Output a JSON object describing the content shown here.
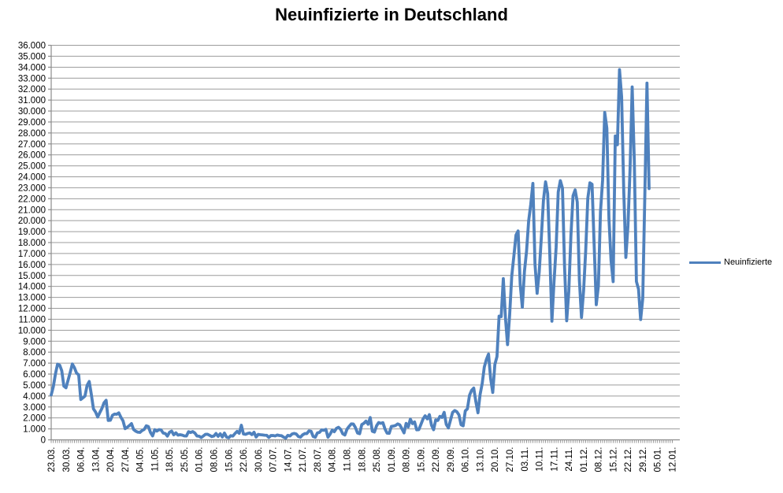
{
  "title": "Neuinfizierte in Deutschland",
  "legend": {
    "label": "Neuinfizierte",
    "position": "right"
  },
  "colors": {
    "line": "#4F81BD",
    "gridline": "#9C9C9C",
    "axis": "#8C8C8C",
    "text": "#000000",
    "background": "#FFFFFF"
  },
  "chart_data": {
    "type": "line",
    "title": "Neuinfizierte in Deutschland",
    "xlabel": "",
    "ylabel": "",
    "grid": "horizontal",
    "legend_position": "right",
    "ylim": [
      0,
      36000
    ],
    "y_tick_step": 1000,
    "y_tick_labels": [
      "0",
      "1.000",
      "2.000",
      "3.000",
      "4.000",
      "5.000",
      "6.000",
      "7.000",
      "8.000",
      "9.000",
      "10.000",
      "11.000",
      "12.000",
      "13.000",
      "14.000",
      "15.000",
      "16.000",
      "17.000",
      "18.000",
      "19.000",
      "20.000",
      "21.000",
      "22.000",
      "23.000",
      "24.000",
      "25.000",
      "26.000",
      "27.000",
      "28.000",
      "29.000",
      "30.000",
      "31.000",
      "32.000",
      "33.000",
      "34.000",
      "35.000",
      "36.000"
    ],
    "x_tick_labels": [
      "23.03.",
      "30.03.",
      "06.04.",
      "13.04.",
      "20.04.",
      "27.04.",
      "04.05.",
      "11.05.",
      "18.05.",
      "25.05.",
      "01.06.",
      "08.06.",
      "15.06.",
      "22.06.",
      "30.06.",
      "07.07.",
      "14.07.",
      "21.07.",
      "28.07.",
      "04.08.",
      "11.08.",
      "18.08.",
      "25.08.",
      "01.09.",
      "08.09.",
      "15.09.",
      "22.09.",
      "29.09.",
      "06.10.",
      "13.10.",
      "20.10.",
      "27.10.",
      "03.11.",
      "10.11.",
      "17.11.",
      "24.11.",
      "01.12.",
      "08.12.",
      "15.12.",
      "22.12.",
      "29.12.",
      "05.01.",
      "12.01."
    ],
    "x_tick_interval_points": 7,
    "x_start": "23.03.2020",
    "x_frequency": "daily",
    "series": [
      {
        "name": "Neuinfizierte",
        "values": [
          4100,
          4850,
          6000,
          6900,
          6820,
          6300,
          4900,
          4750,
          5450,
          6156,
          6922,
          6582,
          6082,
          5936,
          3677,
          3834,
          4003,
          4974,
          5323,
          4133,
          2821,
          2537,
          2082,
          2486,
          2866,
          3380,
          3609,
          1775,
          1785,
          2237,
          2352,
          2337,
          2458,
          2055,
          1737,
          1018,
          1144,
          1304,
          1478,
          945,
          790,
          700,
          680,
          850,
          950,
          1280,
          1210,
          670,
          360,
          930,
          800,
          930,
          910,
          620,
          580,
          340,
          690,
          800,
          460,
          640,
          430,
          470,
          430,
          360,
          350,
          740,
          670,
          750,
          620,
          350,
          333,
          213,
          350,
          500,
          510,
          410,
          300,
          350,
          580,
          320,
          555,
          260,
          620,
          250,
          190,
          380,
          345,
          580,
          770,
          600,
          1331,
          537,
          503,
          587,
          630,
          477,
          687,
          256,
          498,
          466,
          446,
          422,
          412,
          219,
          390,
          397,
          356,
          442,
          395,
          378,
          248,
          159,
          412,
          351,
          534,
          583,
          529,
          305,
          249,
          454,
          569,
          570,
          815,
          781,
          305,
          239,
          633,
          684,
          902,
          870,
          955,
          240,
          509,
          879,
          741,
          1045,
          1147,
          955,
          555,
          436,
          966,
          1226,
          1449,
          1445,
          1122,
          625,
          561,
          1390,
          1510,
          1707,
          1427,
          2034,
          782,
          711,
          1278,
          1576,
          1507,
          1571,
          988,
          610,
          596,
          1218,
          1256,
          1311,
          1453,
          1365,
          1010,
          633,
          1499,
          1176,
          1892,
          1484,
          1630,
          920,
          927,
          1407,
          1901,
          2194,
          1916,
          2297,
          1345,
          922,
          1821,
          1769,
          2143,
          2046,
          2507,
          1411,
          1091,
          1798,
          2503,
          2673,
          2563,
          2279,
          1382,
          1281,
          2639,
          2828,
          4058,
          4516,
          4721,
          3483,
          2467,
          4122,
          5132,
          6638,
          7334,
          7830,
          5587,
          4325,
          6868,
          7595,
          11287,
          11242,
          14714,
          11176,
          8685,
          11409,
          14964,
          16774,
          18681,
          19059,
          14177,
          12097,
          15352,
          17214,
          19990,
          21506,
          23399,
          16017,
          13363,
          15332,
          18487,
          21866,
          23542,
          22461,
          16947,
          10824,
          14419,
          17561,
          22609,
          23648,
          22964,
          15741,
          10864,
          13554,
          18633,
          22268,
          22806,
          21695,
          14611,
          11169,
          13604,
          17270,
          22046,
          23449,
          23318,
          17767,
          12332,
          14054,
          20815,
          23679,
          29875,
          28438,
          20200,
          16362,
          14432,
          27728,
          26923,
          33777,
          31300,
          22771,
          16643,
          19528,
          24740,
          32195,
          25533,
          14455,
          13755,
          10976,
          12892,
          22459,
          32552,
          22924
        ]
      }
    ]
  }
}
